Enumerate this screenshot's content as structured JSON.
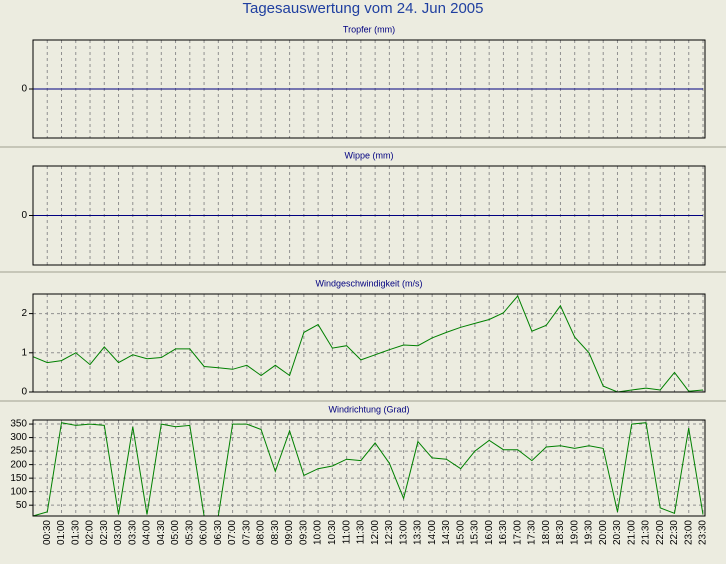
{
  "title": "Tagesauswertung vom 24. Jun 2005",
  "chart_data": [
    {
      "type": "line",
      "title": "Tropfer (mm)",
      "color": "#000080",
      "values": [
        0,
        0,
        0,
        0,
        0,
        0,
        0,
        0,
        0,
        0,
        0,
        0,
        0,
        0,
        0,
        0,
        0,
        0,
        0,
        0,
        0,
        0,
        0,
        0,
        0,
        0,
        0,
        0,
        0,
        0,
        0,
        0,
        0,
        0,
        0,
        0,
        0,
        0,
        0,
        0,
        0,
        0,
        0,
        0,
        0,
        0,
        0,
        0
      ],
      "ylim": [
        -1,
        1
      ],
      "yticks": [
        0
      ],
      "grid": true
    },
    {
      "type": "line",
      "title": "Wippe (mm)",
      "color": "#000080",
      "values": [
        0,
        0,
        0,
        0,
        0,
        0,
        0,
        0,
        0,
        0,
        0,
        0,
        0,
        0,
        0,
        0,
        0,
        0,
        0,
        0,
        0,
        0,
        0,
        0,
        0,
        0,
        0,
        0,
        0,
        0,
        0,
        0,
        0,
        0,
        0,
        0,
        0,
        0,
        0,
        0,
        0,
        0,
        0,
        0,
        0,
        0,
        0,
        0
      ],
      "ylim": [
        -1,
        1
      ],
      "yticks": [
        0
      ],
      "grid": true
    },
    {
      "type": "line",
      "title": "Windgeschwindigkeit (m/s)",
      "color": "#008000",
      "values": [
        0.9,
        0.75,
        0.8,
        1.0,
        0.7,
        1.15,
        0.75,
        0.95,
        0.85,
        0.88,
        1.1,
        1.1,
        0.65,
        0.62,
        0.58,
        0.68,
        0.42,
        0.68,
        0.42,
        1.52,
        1.72,
        1.12,
        1.18,
        0.82,
        0.95,
        1.08,
        1.2,
        1.18,
        1.38,
        1.52,
        1.65,
        1.75,
        1.85,
        2.02,
        2.45,
        1.55,
        1.7,
        2.2,
        1.4,
        1.0,
        0.15,
        0.0,
        0.05,
        0.1,
        0.05,
        0.5,
        0.02,
        0.05
      ],
      "ylim": [
        0,
        2.5
      ],
      "yticks": [
        0,
        1,
        2
      ],
      "grid": true
    },
    {
      "type": "line",
      "title": "Windrichtung (Grad)",
      "color": "#008000",
      "categories": [
        null,
        "00:30",
        "01:00",
        "01:30",
        "02:00",
        "02:30",
        "03:00",
        "03:30",
        "04:00",
        "04:30",
        "05:00",
        "05:30",
        "06:00",
        "06:30",
        "07:00",
        "07:30",
        "08:00",
        "08:30",
        "09:00",
        "09:30",
        "10:00",
        "10:30",
        "11:00",
        "11:30",
        "12:00",
        "12:30",
        "13:00",
        "13:30",
        "14:00",
        "14:30",
        "15:00",
        "15:30",
        "16:00",
        "16:30",
        "17:00",
        "17:30",
        "18:00",
        "18:30",
        "19:00",
        "19:30",
        "20:00",
        "20:30",
        "21:00",
        "21:30",
        "22:00",
        "22:30",
        "23:00",
        "23:30"
      ],
      "values": [
        10,
        25,
        355,
        345,
        350,
        345,
        15,
        340,
        15,
        350,
        340,
        345,
        10,
        10,
        350,
        350,
        330,
        175,
        325,
        160,
        185,
        195,
        220,
        215,
        280,
        205,
        75,
        285,
        225,
        220,
        185,
        250,
        290,
        255,
        255,
        215,
        265,
        270,
        260,
        270,
        260,
        25,
        350,
        355,
        40,
        20,
        335,
        15
      ],
      "ylim": [
        10,
        365
      ],
      "yticks": [
        50,
        100,
        150,
        200,
        250,
        300,
        350
      ],
      "grid": true
    }
  ]
}
